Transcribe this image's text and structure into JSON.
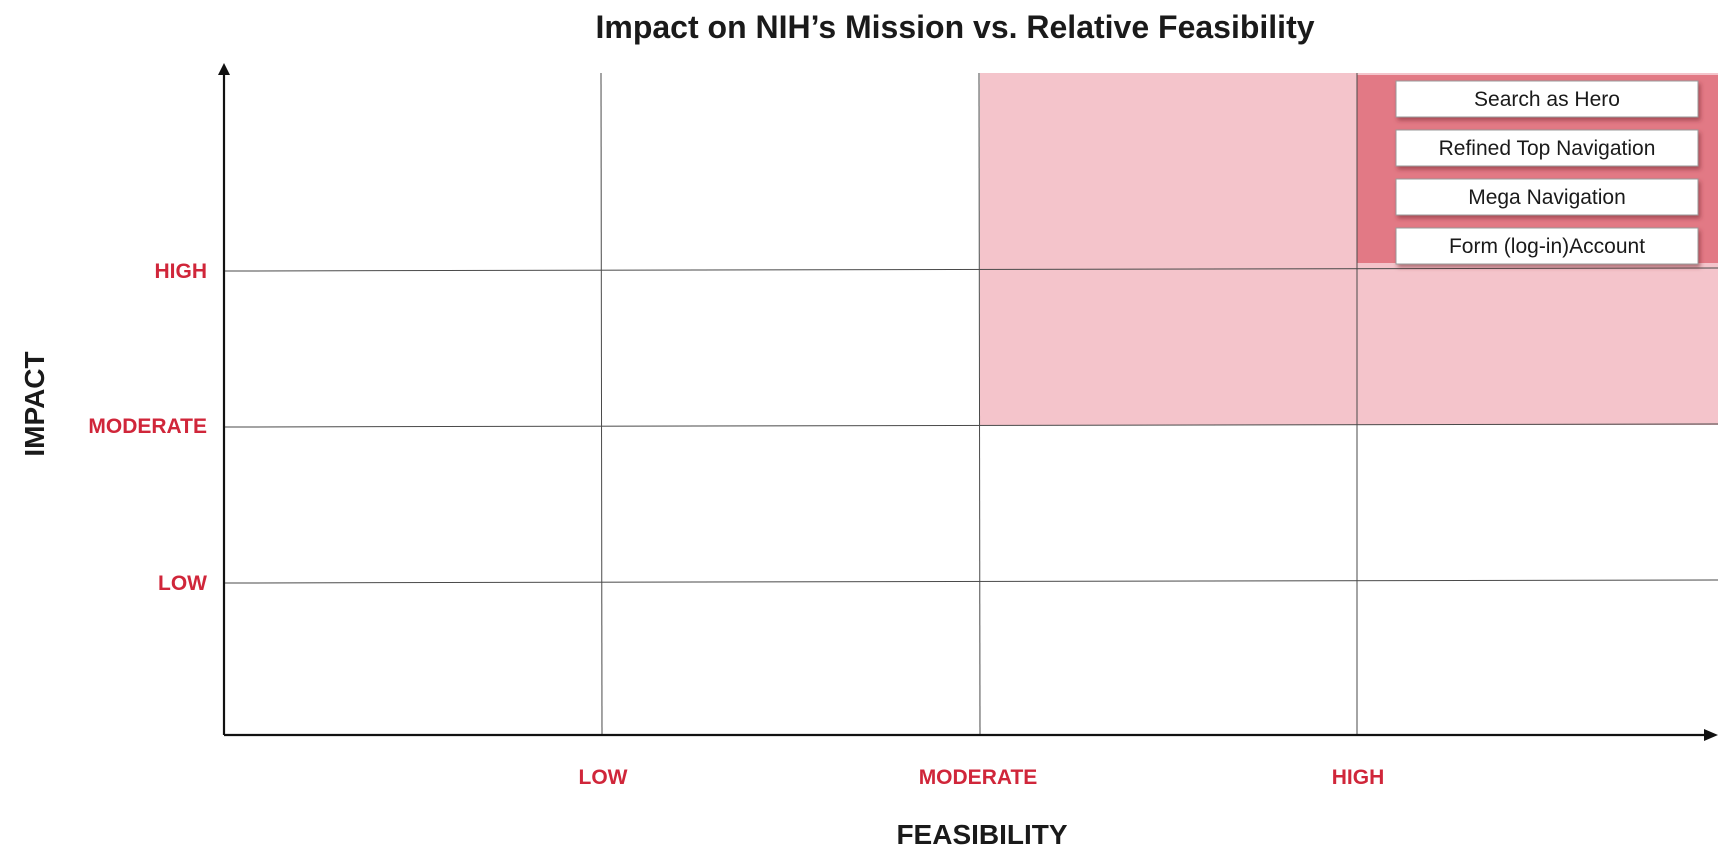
{
  "title": "Impact on NIH’s Mission vs. Relative Feasibility",
  "axes": {
    "x_title": "FEASIBILITY",
    "y_title": "IMPACT",
    "x_levels": [
      "LOW",
      "MODERATE",
      "HIGH"
    ],
    "y_levels": [
      "HIGH",
      "MODERATE",
      "LOW"
    ]
  },
  "colors": {
    "label": "#d0263a",
    "zone_light": "#f4c4cb",
    "zone_strong": "#e27985",
    "item_shadow": "#7a2a33"
  },
  "highlight_zone": {
    "light": "feasibility MODERATE and above, impact MODERATE and above",
    "strong": "feasibility HIGH, impact HIGH"
  },
  "items": [
    {
      "label": "Search as Hero",
      "feasibility": "HIGH",
      "impact": "HIGH"
    },
    {
      "label": "Refined Top Navigation",
      "feasibility": "HIGH",
      "impact": "HIGH"
    },
    {
      "label": "Mega Navigation",
      "feasibility": "HIGH",
      "impact": "HIGH"
    },
    {
      "label": "Form (log-in)Account",
      "feasibility": "HIGH",
      "impact": "HIGH"
    }
  ]
}
